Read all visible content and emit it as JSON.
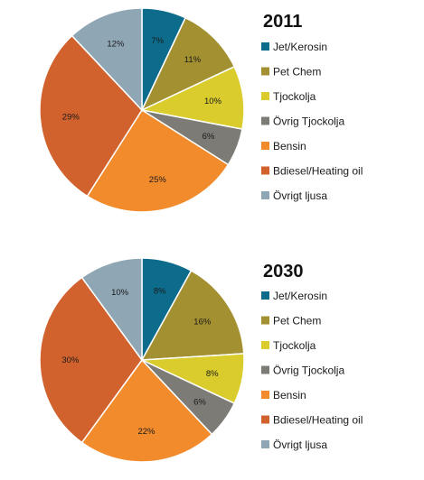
{
  "chart_data": [
    {
      "type": "pie",
      "title": "2011",
      "slices": [
        {
          "label": "Jet/Kerosin",
          "value": 7,
          "display": "7%",
          "color": "#0d6c8c"
        },
        {
          "label": "Pet Chem",
          "value": 11,
          "display": "11%",
          "color": "#a39030"
        },
        {
          "label": "Tjockolja",
          "value": 10,
          "display": "10%",
          "color": "#d9cc2c"
        },
        {
          "label": "Övrig Tjockolja",
          "value": 6,
          "display": "6%",
          "color": "#7d7b76"
        },
        {
          "label": "Bensin",
          "value": 25,
          "display": "25%",
          "color": "#f28b2c"
        },
        {
          "label": "Bdiesel/Heating oil",
          "value": 29,
          "display": "29%",
          "color": "#d1622d"
        },
        {
          "label": "Övrigt ljusa",
          "value": 12,
          "display": "12%",
          "color": "#8fa6b4"
        }
      ]
    },
    {
      "type": "pie",
      "title": "2030",
      "slices": [
        {
          "label": "Jet/Kerosin",
          "value": 8,
          "display": "8%",
          "color": "#0d6c8c"
        },
        {
          "label": "Pet Chem",
          "value": 16,
          "display": "16%",
          "color": "#a39030"
        },
        {
          "label": "Tjockolja",
          "value": 8,
          "display": "8%",
          "color": "#d9cc2c"
        },
        {
          "label": "Övrig Tjockolja",
          "value": 6,
          "display": "6%",
          "color": "#7d7b76"
        },
        {
          "label": "Bensin",
          "value": 22,
          "display": "22%",
          "color": "#f28b2c"
        },
        {
          "label": "Bdiesel/Heating oil",
          "value": 30,
          "display": "30%",
          "color": "#d1622d"
        },
        {
          "label": "Övrigt ljusa",
          "value": 10,
          "display": "10%",
          "color": "#8fa6b4"
        }
      ]
    }
  ]
}
